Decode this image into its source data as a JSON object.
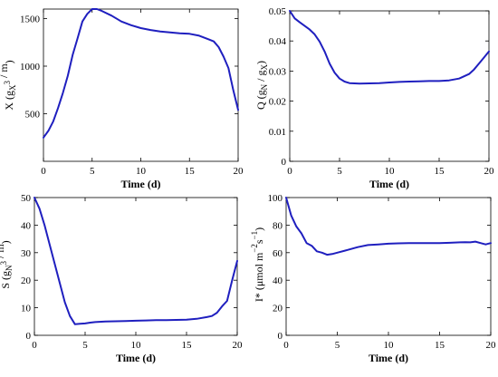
{
  "figure": {
    "line_color": "#1f1fbf",
    "axis_color": "#000000"
  },
  "chart_data": [
    {
      "type": "line",
      "xlabel": "Time (d)",
      "ylabel": {
        "main": "X (g",
        "sub": "X",
        "mid": " / m",
        "sup": "3",
        "end": ")"
      },
      "xlim": [
        0,
        20
      ],
      "ylim": [
        0,
        1600
      ],
      "xticks": [
        0,
        5,
        10,
        15,
        20
      ],
      "yticks": [
        500,
        1000,
        1500
      ],
      "series": [
        {
          "x": [
            0,
            0.5,
            1,
            1.5,
            2,
            2.5,
            3,
            3.5,
            4,
            4.5,
            5,
            5.5,
            6,
            7,
            8,
            9,
            10,
            11,
            12,
            13,
            14,
            15,
            16,
            17,
            17.5,
            18,
            18.5,
            19,
            19.5,
            20
          ],
          "y": [
            250,
            320,
            420,
            560,
            720,
            900,
            1120,
            1290,
            1470,
            1550,
            1600,
            1600,
            1580,
            1530,
            1470,
            1430,
            1400,
            1380,
            1365,
            1355,
            1345,
            1340,
            1320,
            1280,
            1260,
            1200,
            1100,
            980,
            750,
            540
          ]
        }
      ]
    },
    {
      "type": "line",
      "xlabel": "Time (d)",
      "ylabel": {
        "main": "Q (g",
        "sub": "N",
        "mid": " / g",
        "sub2": "X",
        "end": ")"
      },
      "xlim": [
        0,
        20
      ],
      "ylim": [
        0,
        0.05
      ],
      "xticks": [
        0,
        5,
        10,
        15,
        20
      ],
      "yticks": [
        0,
        0.01,
        0.02,
        0.03,
        0.04,
        0.05
      ],
      "ytick_labels": [
        "0",
        "0.01",
        "0.02",
        "0.03",
        "0.04",
        "0.05"
      ],
      "series": [
        {
          "x": [
            0,
            0.5,
            1,
            1.5,
            2,
            2.5,
            3,
            3.5,
            4,
            4.5,
            5,
            5.5,
            6,
            7,
            8,
            9,
            10,
            11,
            12,
            13,
            14,
            15,
            16,
            17,
            18,
            18.5,
            19,
            19.5,
            20
          ],
          "y": [
            0.05,
            0.0475,
            0.0462,
            0.045,
            0.0438,
            0.0422,
            0.0398,
            0.0365,
            0.0325,
            0.0295,
            0.0275,
            0.0265,
            0.026,
            0.0258,
            0.0259,
            0.026,
            0.0262,
            0.0264,
            0.0265,
            0.0266,
            0.0267,
            0.0267,
            0.0269,
            0.0275,
            0.029,
            0.0305,
            0.0325,
            0.0345,
            0.0365
          ]
        }
      ]
    },
    {
      "type": "line",
      "xlabel": "Time (d)",
      "ylabel": {
        "main": "S (g",
        "sub": "N",
        "mid": " / m",
        "sup": "3",
        "end": ")"
      },
      "xlim": [
        0,
        20
      ],
      "ylim": [
        0,
        50
      ],
      "xticks": [
        0,
        5,
        10,
        15,
        20
      ],
      "yticks": [
        0,
        10,
        20,
        30,
        40,
        50
      ],
      "series": [
        {
          "x": [
            0,
            0.5,
            1,
            1.5,
            2,
            2.5,
            3,
            3.5,
            4,
            4.5,
            5,
            5.5,
            6,
            7,
            8,
            9,
            10,
            11,
            12,
            13,
            14,
            15,
            16,
            17,
            17.5,
            18,
            18.5,
            19,
            19.5,
            20
          ],
          "y": [
            50,
            46,
            40,
            33,
            26,
            19,
            12,
            7,
            4,
            4.2,
            4.3,
            4.6,
            4.8,
            5,
            5.1,
            5.2,
            5.3,
            5.4,
            5.5,
            5.5,
            5.6,
            5.7,
            6,
            6.6,
            7,
            8.2,
            10.5,
            12.5,
            20,
            27
          ]
        }
      ]
    },
    {
      "type": "line",
      "xlabel": "Time (d)",
      "ylabel": {
        "main": "I* (μmol m",
        "sup": "−2",
        "mid": "s",
        "sup2": "−1",
        "end": ")"
      },
      "xlim": [
        0,
        20
      ],
      "ylim": [
        0,
        100
      ],
      "xticks": [
        0,
        5,
        10,
        15,
        20
      ],
      "yticks": [
        0,
        20,
        40,
        60,
        80,
        100
      ],
      "series": [
        {
          "x": [
            0,
            0.5,
            1,
            1.5,
            2,
            2.5,
            3,
            3.5,
            4,
            4.5,
            5,
            6,
            7,
            8,
            9,
            10,
            11,
            12,
            13,
            14,
            15,
            16,
            17,
            17.5,
            18,
            18.5,
            19,
            19.5,
            20
          ],
          "y": [
            100,
            87,
            79,
            74,
            67,
            65,
            61,
            60,
            58.5,
            59,
            60,
            62,
            64,
            65.5,
            66,
            66.5,
            66.8,
            67,
            67,
            67,
            67,
            67.2,
            67.5,
            67.6,
            67.5,
            68,
            67,
            66,
            67
          ]
        }
      ]
    }
  ]
}
